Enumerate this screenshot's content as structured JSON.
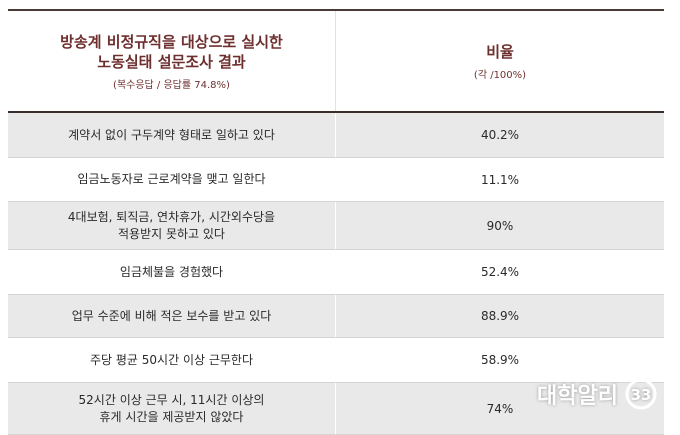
{
  "header": {
    "title_line1": "방송계 비정규직을 대상으로 실시한",
    "title_line2": "노동실태 설문조사 결과",
    "title_note": "(복수응답 / 응답률 74.8%)",
    "col2_title": "비율",
    "col2_note": "(각 /100%)"
  },
  "rows": [
    {
      "lines": [
        "계약서 없이 구두계약 형태로 일하고 있다"
      ],
      "value": "40.2%"
    },
    {
      "lines": [
        "임금노동자로 근로계약을 맺고 일한다"
      ],
      "value": "11.1%"
    },
    {
      "lines": [
        "4대보험, 퇴직금, 연차휴가, 시간외수당을",
        "적용받지 못하고 있다"
      ],
      "value": "90%"
    },
    {
      "lines": [
        "임금체불을 경험했다"
      ],
      "value": "52.4%"
    },
    {
      "lines": [
        "업무 수준에 비해 적은 보수를 받고 있다"
      ],
      "value": "88.9%"
    },
    {
      "lines": [
        "주당 평균 50시간 이상 근무한다"
      ],
      "value": "58.9%"
    },
    {
      "lines": [
        "52시간 이상 근무 시, 11시간 이상의",
        "휴게 시간을 제공받지 않았다"
      ],
      "value": "74%"
    }
  ],
  "watermark": {
    "text": "대학알리",
    "logo": "33"
  }
}
